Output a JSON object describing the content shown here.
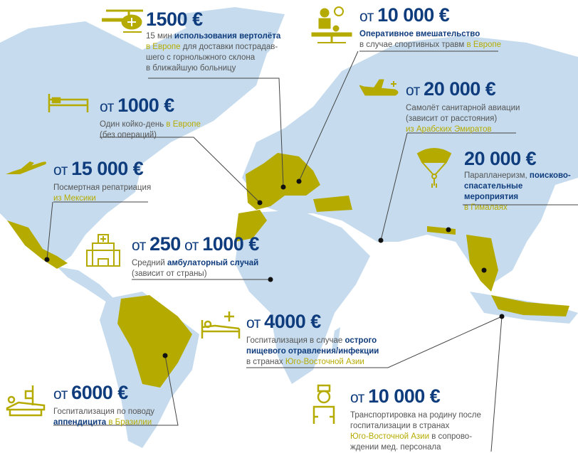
{
  "colors": {
    "navy": "#0f3c7d",
    "olive": "#b5ab00",
    "map": "#c6dcee",
    "text": "#555555"
  },
  "items": [
    {
      "id": "helicopter",
      "icon": "helicopter-icon",
      "prefix": "",
      "price": "1500 €",
      "lines": [
        [
          {
            "t": "15 мин ",
            "c": "grey"
          },
          {
            "t": "использования вертолёта",
            "c": "navy"
          }
        ],
        [
          {
            "t": "в Европе",
            "c": "olive"
          },
          {
            "t": " для доставки пострадав-",
            "c": "grey"
          }
        ],
        [
          {
            "t": "шего с горнолыжного склона",
            "c": "grey"
          }
        ],
        [
          {
            "t": "в ближайшую больницу",
            "c": "grey"
          }
        ]
      ]
    },
    {
      "id": "hospital-bed-day",
      "icon": "bed-icon",
      "prefix": "от ",
      "price": "1000 €",
      "lines": [
        [
          {
            "t": "Один койко-день ",
            "c": "grey"
          },
          {
            "t": "в Европе",
            "c": "olive"
          }
        ],
        [
          {
            "t": "(без операций)",
            "c": "grey"
          }
        ]
      ]
    },
    {
      "id": "repatriation",
      "icon": "airplane-icon",
      "prefix": "от ",
      "price": "15 000 €",
      "lines": [
        [
          {
            "t": "Посмертная репатриация",
            "c": "grey"
          }
        ],
        [
          {
            "t": "из Мексики",
            "c": "olive"
          }
        ]
      ]
    },
    {
      "id": "outpatient",
      "icon": "hospital-building-icon",
      "prefix": "от ",
      "price": "250",
      "prefix2": " от ",
      "price2": "1000 €",
      "lines": [
        [
          {
            "t": "Средний ",
            "c": "grey"
          },
          {
            "t": "амбулаторный случай",
            "c": "navy"
          }
        ],
        [
          {
            "t": "(зависит от страны)",
            "c": "grey"
          }
        ]
      ]
    },
    {
      "id": "surgery",
      "icon": "surgery-icon",
      "prefix": "от ",
      "price": "10 000 €",
      "lines": [
        [
          {
            "t": "Оперативное вмешательство",
            "c": "navy"
          }
        ],
        [
          {
            "t": "в случае спортивных травм ",
            "c": "grey"
          },
          {
            "t": "в Европе",
            "c": "olive"
          }
        ]
      ]
    },
    {
      "id": "air-ambulance",
      "icon": "ambulance-plane-icon",
      "prefix": "от ",
      "price": "20 000 €",
      "lines": [
        [
          {
            "t": "Самолёт санитарной авиации",
            "c": "grey"
          }
        ],
        [
          {
            "t": "(зависит от расстояния)",
            "c": "grey"
          }
        ],
        [
          {
            "t": "из Арабских Эмиратов",
            "c": "olive"
          }
        ]
      ]
    },
    {
      "id": "paragliding",
      "icon": "paraglider-icon",
      "prefix": "",
      "price": "20 000 €",
      "lines": [
        [
          {
            "t": "Парапланеризм, ",
            "c": "grey"
          },
          {
            "t": "поисково-",
            "c": "navy"
          }
        ],
        [
          {
            "t": "спасательные мероприятия",
            "c": "navy"
          }
        ],
        [
          {
            "t": "в Гималаях",
            "c": "olive"
          }
        ]
      ]
    },
    {
      "id": "food-poisoning",
      "icon": "patient-bed-icon",
      "prefix": "от ",
      "price": "4000 €",
      "lines": [
        [
          {
            "t": "Госпитализация в случае ",
            "c": "grey"
          },
          {
            "t": "острого",
            "c": "navy"
          }
        ],
        [
          {
            "t": "пищевого отравления/инфекции",
            "c": "navy"
          }
        ],
        [
          {
            "t": "в странах ",
            "c": "grey"
          },
          {
            "t": "Юго-Восточной Азии",
            "c": "olive"
          }
        ]
      ]
    },
    {
      "id": "transport-home",
      "icon": "nurse-icon",
      "prefix": "от ",
      "price": "10 000 €",
      "lines": [
        [
          {
            "t": "Транспортировка на родину после",
            "c": "grey"
          }
        ],
        [
          {
            "t": "госпитализации в странах",
            "c": "grey"
          }
        ],
        [
          {
            "t": "Юго-Восточной Азии",
            "c": "olive"
          },
          {
            "t": " в сопрово-",
            "c": "grey"
          }
        ],
        [
          {
            "t": "ждении мед. персонала",
            "c": "grey"
          }
        ]
      ]
    },
    {
      "id": "appendicitis",
      "icon": "hospital-bed-drip-icon",
      "prefix": "от ",
      "price": "6000 €",
      "lines": [
        [
          {
            "t": "Госпитализация по поводу",
            "c": "grey"
          }
        ],
        [
          {
            "t": "аппендицита",
            "c": "navy"
          },
          {
            "t": " в Бразилии",
            "c": "olive"
          }
        ]
      ]
    }
  ]
}
